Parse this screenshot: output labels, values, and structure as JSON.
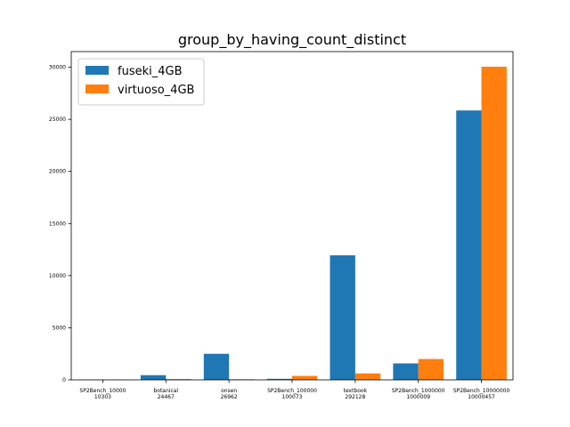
{
  "chart_data": {
    "type": "bar",
    "title": "group_by_having_count_distinct",
    "xlabel": "",
    "ylabel": "",
    "categories": [
      [
        "SP2Bench_10000",
        "10303"
      ],
      [
        "botanical",
        "24467"
      ],
      [
        "onsen",
        "26962"
      ],
      [
        "SP2Bench_100000",
        "100073"
      ],
      [
        "textbook",
        "292128"
      ],
      [
        "SP2Bench_1000000",
        "1000009"
      ],
      [
        "SP2Bench_10000000",
        "10000457"
      ]
    ],
    "series": [
      {
        "name": "fuseki_4GB",
        "color": "#1f77b4",
        "values": [
          20,
          450,
          2500,
          100,
          11950,
          1580,
          25850
        ]
      },
      {
        "name": "virtuoso_4GB",
        "color": "#ff7f0e",
        "values": [
          15,
          80,
          60,
          380,
          620,
          2000,
          30050
        ]
      }
    ],
    "ylim": [
      0,
      31500
    ],
    "yticks": [
      0,
      5000,
      10000,
      15000,
      20000,
      25000,
      30000
    ],
    "legend_position": "top-left",
    "grid": false
  }
}
